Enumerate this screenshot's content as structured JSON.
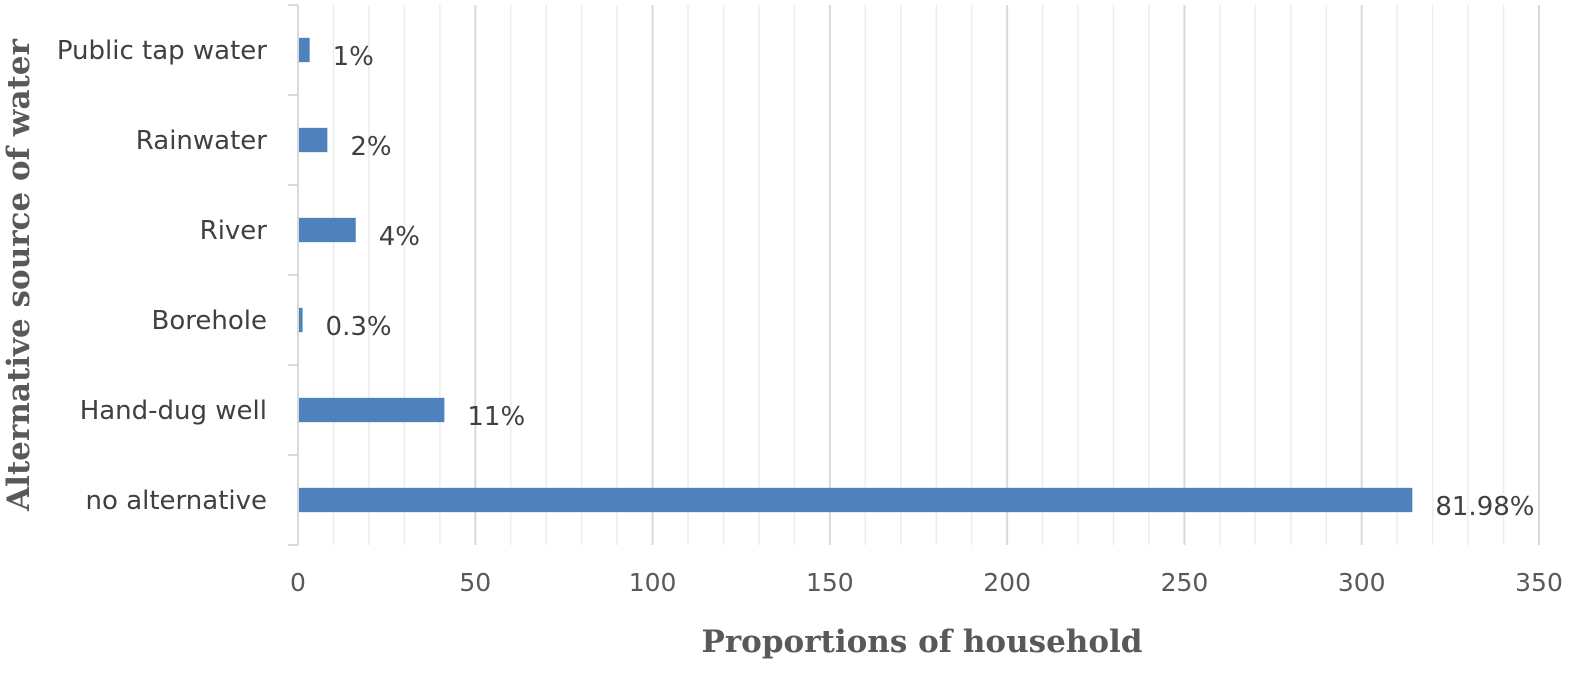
{
  "chart_data": {
    "type": "bar",
    "orientation": "horizontal",
    "categories": [
      "Public tap water",
      "Rainwater",
      "River",
      "Borehole",
      "Hand-dug well",
      "no alternative"
    ],
    "values": [
      3,
      8,
      16,
      1,
      41,
      314
    ],
    "data_labels": [
      "1%",
      "2%",
      "4%",
      "0.3%",
      "11%",
      "81.98%"
    ],
    "xlabel": "Proportions of household",
    "ylabel": "Alternative source of water",
    "xlim": [
      0,
      350
    ],
    "xticks": [
      0,
      50,
      100,
      150,
      200,
      250,
      300,
      350
    ],
    "xtick_labels": [
      "0",
      "50",
      "100",
      "150",
      "200",
      "250",
      "300",
      "350"
    ],
    "grid": "vertical major and minor gridlines",
    "legend": "none",
    "bar_color": "#4f81bd",
    "major_grid_color": "#d9d9d9",
    "minor_grid_color": "#ececec"
  }
}
